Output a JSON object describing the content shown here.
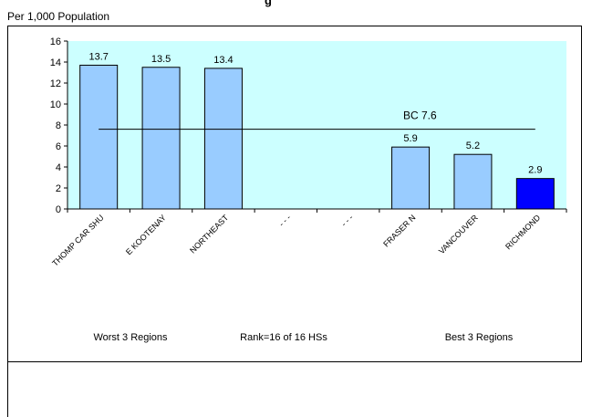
{
  "header": {
    "title_fragment": "g",
    "unit_label": "Per 1,000 Population"
  },
  "chart_data": {
    "type": "bar",
    "categories": [
      "THOMP CAR SHU",
      "E KOOTENAY",
      "NORTHEAST",
      "- - -",
      "- - -",
      "FRASER N",
      "VANCOUVER",
      "RICHMOND"
    ],
    "values": [
      13.7,
      13.5,
      13.4,
      null,
      null,
      5.9,
      5.2,
      2.9
    ],
    "value_labels": [
      "13.7",
      "13.5",
      "13.4",
      "",
      "",
      "5.9",
      "5.2",
      "2.9"
    ],
    "highlight_index": 7,
    "ylim": [
      0,
      16
    ],
    "yticks": [
      0,
      2,
      4,
      6,
      8,
      10,
      12,
      14,
      16
    ],
    "reference_line": {
      "label": "BC 7.6",
      "value": 7.6
    },
    "footer_labels": {
      "left": "Worst 3 Regions",
      "center": "Rank=16 of 16 HSs",
      "right": "Best 3 Regions"
    },
    "colors": {
      "plot_background": "#ccffff",
      "bar": "#99ccff",
      "bar_highlight": "#0000ff",
      "outline": "#000000"
    }
  }
}
